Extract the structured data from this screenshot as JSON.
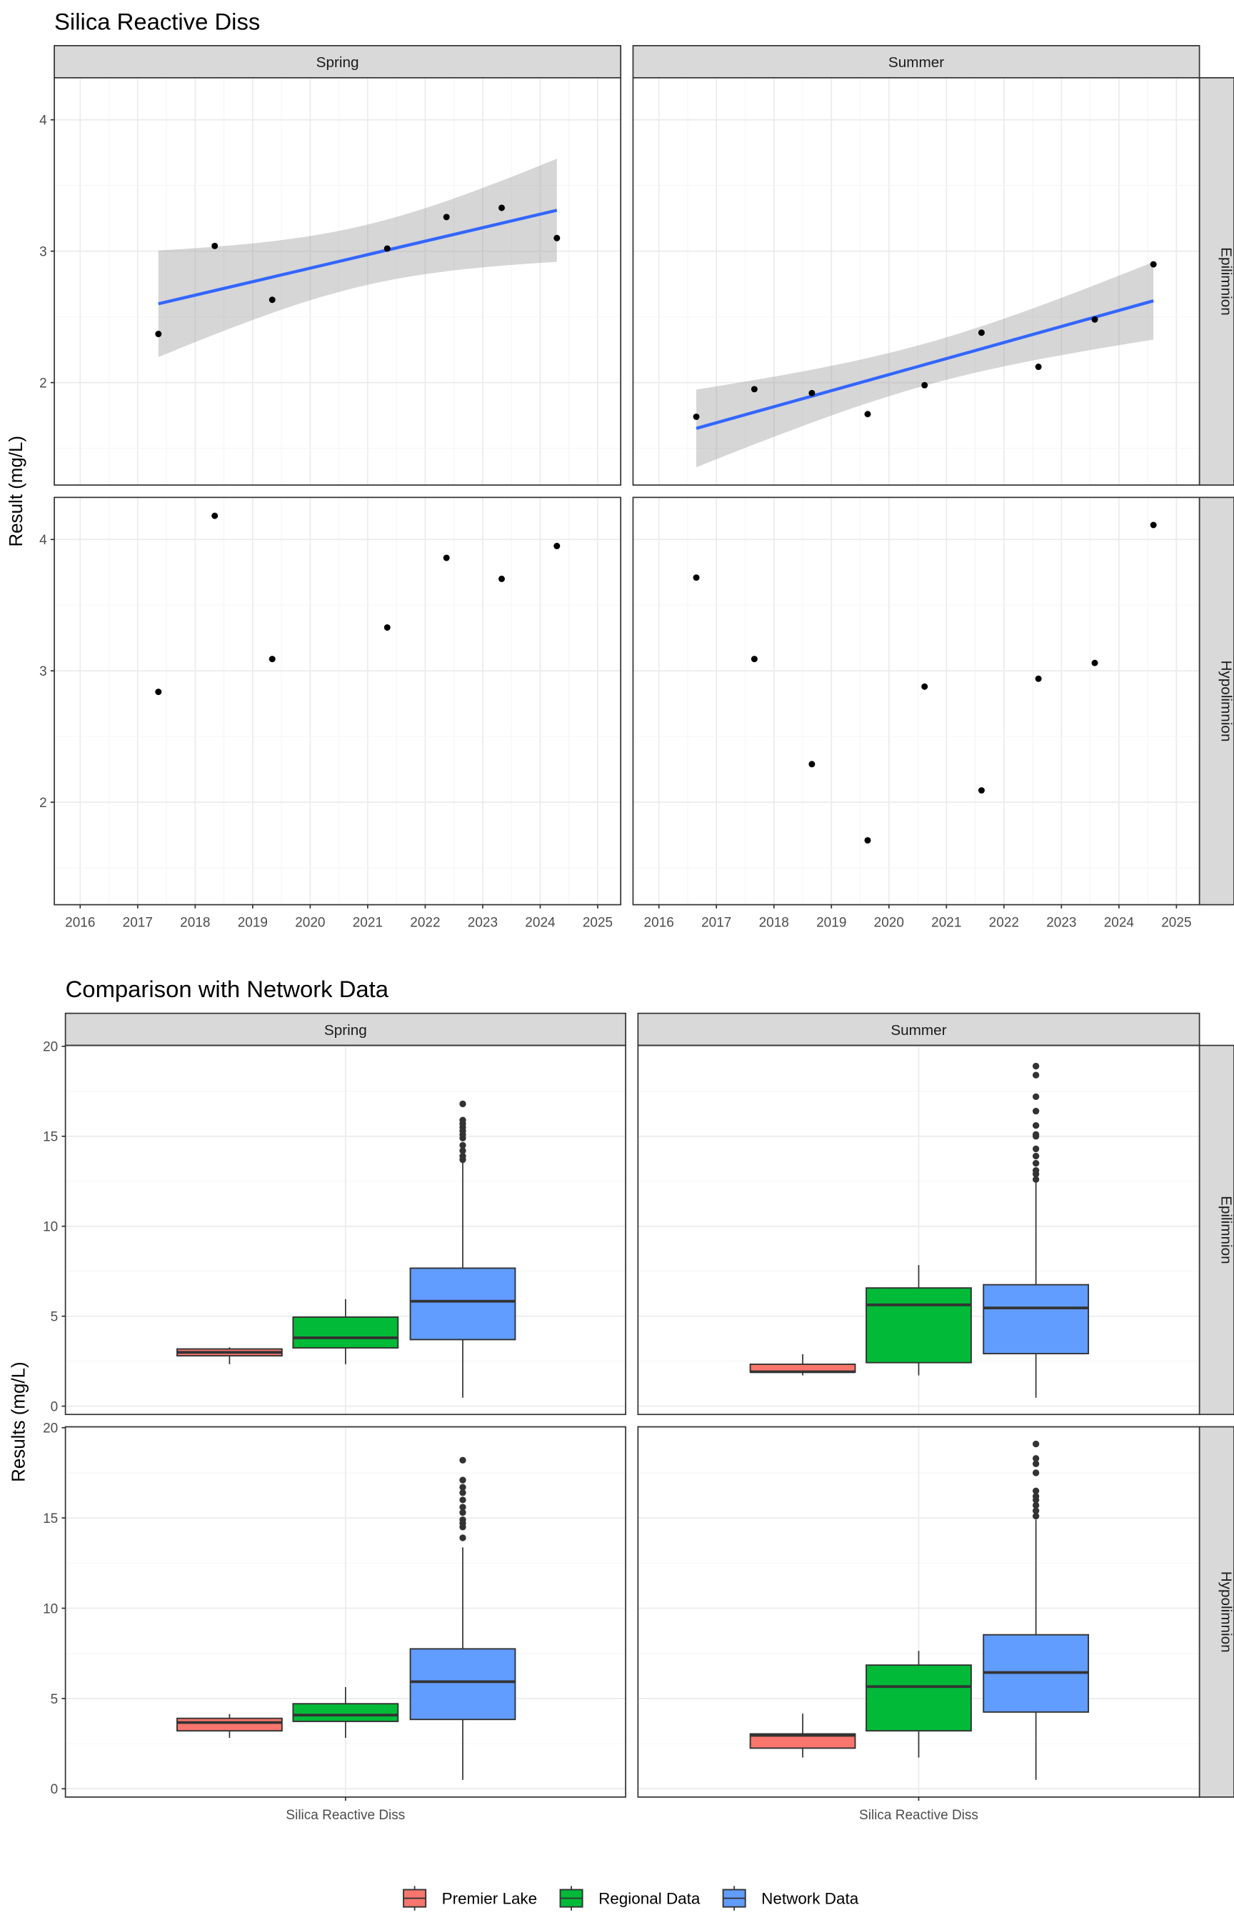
{
  "chart_data": [
    {
      "type": "scatter",
      "title": "Silica Reactive Diss",
      "ylabel": "Result (mg/L)",
      "xlabel": "",
      "cols": [
        "Spring",
        "Summer"
      ],
      "rows": [
        "Epilimnion",
        "Hypolimnion"
      ],
      "xlim": [
        2015.55,
        2025.4
      ],
      "ylim": [
        1.22,
        4.32
      ],
      "xticks": [
        "2016",
        "2017",
        "2018",
        "2019",
        "2020",
        "2021",
        "2022",
        "2023",
        "2024",
        "2025"
      ],
      "yticks": [
        "2",
        "3",
        "4"
      ],
      "grid": true,
      "smooth": {
        "method": "linear",
        "confidence_band": true,
        "line_color": "#3366FF",
        "band_color": "#999999"
      },
      "panels": [
        {
          "col": "Spring",
          "row": "Epilimnion",
          "smooth": true,
          "x": [
            2017.36,
            2018.34,
            2019.34,
            2021.34,
            2022.37,
            2023.33,
            2024.29
          ],
          "y": [
            2.37,
            3.04,
            2.63,
            3.02,
            3.26,
            3.33,
            3.1
          ]
        },
        {
          "col": "Summer",
          "row": "Epilimnion",
          "smooth": true,
          "x": [
            2016.65,
            2017.66,
            2018.66,
            2019.63,
            2020.62,
            2021.61,
            2022.6,
            2023.58,
            2024.6
          ],
          "y": [
            1.74,
            1.95,
            1.92,
            1.76,
            1.98,
            2.38,
            2.12,
            2.48,
            2.9
          ]
        },
        {
          "col": "Spring",
          "row": "Hypolimnion",
          "smooth": false,
          "x": [
            2017.36,
            2018.34,
            2019.34,
            2021.34,
            2022.37,
            2023.33,
            2024.29
          ],
          "y": [
            2.84,
            4.18,
            3.09,
            3.33,
            3.86,
            3.7,
            3.95
          ]
        },
        {
          "col": "Summer",
          "row": "Hypolimnion",
          "smooth": false,
          "x": [
            2016.65,
            2017.66,
            2018.66,
            2019.63,
            2020.62,
            2021.61,
            2022.6,
            2023.58,
            2024.6
          ],
          "y": [
            3.71,
            3.09,
            2.29,
            1.71,
            2.88,
            2.09,
            2.94,
            3.06,
            4.11
          ]
        }
      ]
    },
    {
      "type": "box",
      "title": "Comparison with Network Data",
      "ylabel": "Results (mg/L)",
      "xlabel": "",
      "cols": [
        "Spring",
        "Summer"
      ],
      "rows": [
        "Epilimnion",
        "Hypolimnion"
      ],
      "categories": [
        "Silica Reactive Diss"
      ],
      "ylim": [
        -0.46,
        20.05
      ],
      "yticks": [
        "0",
        "5",
        "10",
        "15",
        "20"
      ],
      "grid": true,
      "legend": {
        "position": "bottom"
      },
      "series": [
        {
          "name": "Premier Lake",
          "color": "#F8766D"
        },
        {
          "name": "Regional Data",
          "color": "#00BA38"
        },
        {
          "name": "Network Data",
          "color": "#619CFF"
        }
      ],
      "panels": [
        {
          "col": "Spring",
          "row": "Epilimnion",
          "boxes": [
            {
              "series": "Premier Lake",
              "min": 2.33,
              "q1": 2.8,
              "median": 2.99,
              "q3": 3.18,
              "max": 3.27,
              "outliers": []
            },
            {
              "series": "Regional Data",
              "min": 2.33,
              "q1": 3.24,
              "median": 3.8,
              "q3": 4.95,
              "max": 5.95,
              "outliers": []
            },
            {
              "series": "Network Data",
              "min": 0.47,
              "q1": 3.7,
              "median": 5.83,
              "q3": 7.67,
              "max": 13.6,
              "outliers": [
                16.8,
                15.9,
                15.7,
                15.5,
                15.3,
                15.1,
                14.9,
                14.5,
                14.2,
                13.9,
                13.7
              ]
            }
          ]
        },
        {
          "col": "Summer",
          "row": "Epilimnion",
          "boxes": [
            {
              "series": "Premier Lake",
              "min": 1.71,
              "q1": 1.89,
              "median": 1.91,
              "q3": 2.33,
              "max": 2.89,
              "outliers": []
            },
            {
              "series": "Regional Data",
              "min": 1.71,
              "q1": 2.42,
              "median": 5.63,
              "q3": 6.57,
              "max": 7.84,
              "outliers": []
            },
            {
              "series": "Network Data",
              "min": 0.47,
              "q1": 2.92,
              "median": 5.46,
              "q3": 6.75,
              "max": 12.5,
              "outliers": [
                18.9,
                18.4,
                17.2,
                16.4,
                15.6,
                15.1,
                15.0,
                14.3,
                13.9,
                13.5,
                13.1,
                12.9,
                12.6
              ]
            }
          ]
        },
        {
          "col": "Spring",
          "row": "Hypolimnion",
          "boxes": [
            {
              "series": "Premier Lake",
              "min": 2.82,
              "q1": 3.21,
              "median": 3.67,
              "q3": 3.9,
              "max": 4.14,
              "outliers": []
            },
            {
              "series": "Regional Data",
              "min": 2.82,
              "q1": 3.73,
              "median": 4.08,
              "q3": 4.71,
              "max": 5.63,
              "outliers": []
            },
            {
              "series": "Network Data",
              "min": 0.49,
              "q1": 3.84,
              "median": 5.93,
              "q3": 7.75,
              "max": 13.37,
              "outliers": [
                18.2,
                17.1,
                16.7,
                16.4,
                16.0,
                15.6,
                15.3,
                14.9,
                14.7,
                14.5,
                13.9
              ]
            }
          ]
        },
        {
          "col": "Summer",
          "row": "Hypolimnion",
          "boxes": [
            {
              "series": "Premier Lake",
              "min": 1.73,
              "q1": 2.25,
              "median": 2.96,
              "q3": 3.04,
              "max": 4.16,
              "outliers": []
            },
            {
              "series": "Regional Data",
              "min": 1.73,
              "q1": 3.21,
              "median": 5.66,
              "q3": 6.85,
              "max": 7.64,
              "outliers": []
            },
            {
              "series": "Network Data",
              "min": 0.49,
              "q1": 4.25,
              "median": 6.44,
              "q3": 8.53,
              "max": 14.9,
              "outliers": [
                19.1,
                18.3,
                18.0,
                17.5,
                16.5,
                16.2,
                16.0,
                15.7,
                15.4,
                15.1
              ]
            }
          ]
        }
      ]
    }
  ]
}
